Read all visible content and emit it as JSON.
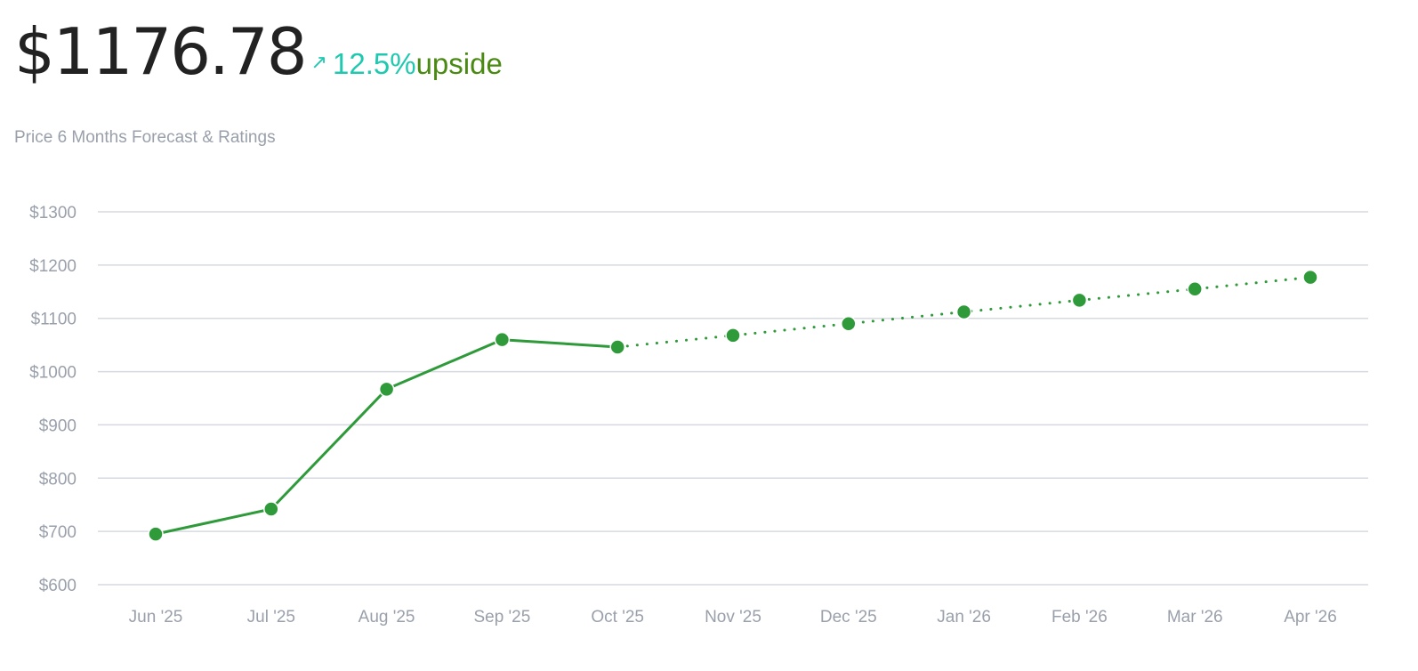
{
  "header": {
    "price": "$1176.78",
    "change_percent": "12.5%",
    "change_label": "upside",
    "subtitle": "Price 6 Months Forecast & Ratings"
  },
  "colors": {
    "line": "#2e9a3a",
    "accent": "#1fc9b0",
    "upside_text": "#4a8a12",
    "grid": "#d6d9e0",
    "tick_text": "#9aa0ab"
  },
  "icons": {
    "change_icon": "arrow-up-right-icon",
    "change_glyph": "↗"
  },
  "chart_data": {
    "type": "line",
    "title": "",
    "xlabel": "",
    "ylabel": "",
    "categories": [
      "Jun '25",
      "Jul '25",
      "Aug '25",
      "Sep '25",
      "Oct '25",
      "Nov '25",
      "Dec '25",
      "Jan '26",
      "Feb '26",
      "Mar '26",
      "Apr '26"
    ],
    "series": [
      {
        "style": "solid",
        "kind": "historical",
        "values": [
          695,
          742,
          967,
          1060,
          1046,
          null,
          null,
          null,
          null,
          null,
          null
        ]
      },
      {
        "style": "dotted",
        "kind": "forecast",
        "values": [
          null,
          null,
          null,
          null,
          1046,
          1068,
          1090,
          1112,
          1134,
          1155,
          1177
        ]
      }
    ],
    "ylim": [
      600,
      1300
    ],
    "yticks": [
      600,
      700,
      800,
      900,
      1000,
      1100,
      1200,
      1300
    ],
    "ytick_labels": [
      "$600",
      "$700",
      "$800",
      "$900",
      "$1000",
      "$1100",
      "$1200",
      "$1300"
    ],
    "grid": true,
    "legend": "none"
  }
}
